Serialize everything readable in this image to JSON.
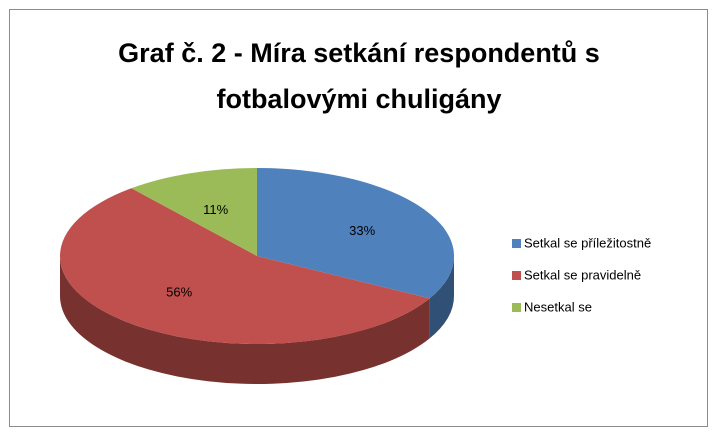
{
  "chart_data": {
    "type": "pie3d",
    "title": "Graf č. 2 - Míra setkání respondentů s fotbalovými chuligány",
    "categories": [
      "Setkal se příležitostně",
      "Setkal se pravidelně",
      "Nesetkal se"
    ],
    "values": [
      33,
      56,
      11
    ],
    "value_labels": [
      "33%",
      "56%",
      "11%"
    ],
    "colors": [
      "#4F81BD",
      "#C0504D",
      "#9BBB59"
    ],
    "legend": "right"
  }
}
